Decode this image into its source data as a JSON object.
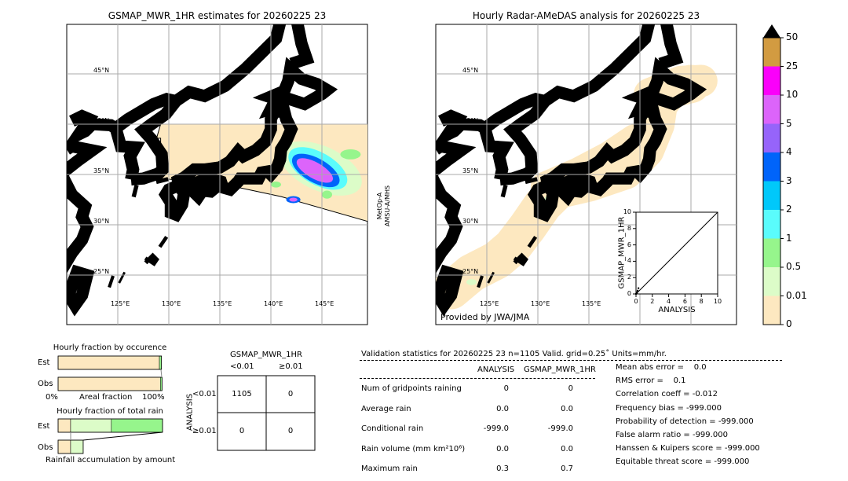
{
  "map_left": {
    "title": "GSMAP_MWR_1HR estimates for 20260225 23",
    "side_label_1": "MetOp-A",
    "side_label_2": "AMSU-A/MHS"
  },
  "map_right": {
    "title": "Hourly Radar-AMeDAS analysis for 20260225 23",
    "credit": "Provided by JWA/JMA"
  },
  "lat_labels": [
    "45°N",
    "40°N",
    "35°N",
    "30°N",
    "25°N"
  ],
  "lon_labels": [
    "125°E",
    "130°E",
    "135°E",
    "140°E",
    "145°E"
  ],
  "colorbar": {
    "ticks": [
      "0",
      "0.01",
      "0.5",
      "1",
      "2",
      "3",
      "4",
      "5",
      "10",
      "25",
      "50"
    ],
    "colors": [
      "#fde8c0",
      "#dcfcc8",
      "#96f58c",
      "#5afcfc",
      "#00c8fa",
      "#0064fa",
      "#9664fa",
      "#dc64fa",
      "#fa00fa",
      "#d29b41"
    ],
    "extend_color": "#000000"
  },
  "chart_data": [
    {
      "type": "scatter",
      "xlabel": "ANALYSIS",
      "ylabel": "GSMAP_MWR_1HR",
      "xlim": [
        0,
        10
      ],
      "ylim": [
        0,
        10
      ],
      "ticks": [
        "0",
        "2",
        "4",
        "6",
        "8",
        "10"
      ],
      "points": [
        [
          0,
          0
        ],
        [
          0.1,
          0.2
        ],
        [
          0.2,
          0.4
        ],
        [
          0.3,
          0.7
        ],
        [
          0.1,
          0.1
        ]
      ]
    },
    {
      "type": "bar",
      "title": "Hourly fraction by occurence",
      "categories": [
        "Est",
        "Obs"
      ],
      "xlabel": "Areal fraction",
      "xtick_left": "0%",
      "xtick_right": "100%",
      "series": [
        {
          "values": [
            0.97,
            0.98
          ],
          "color": "#fde8c0"
        },
        {
          "values": [
            0.02,
            0.015
          ],
          "color": "#96f58c"
        }
      ]
    },
    {
      "type": "bar",
      "title": "Hourly fraction of total rain",
      "categories": [
        "Est",
        "Obs"
      ],
      "xlabel": "Rainfall accumulation by amount",
      "series": [
        {
          "values": [
            0.12,
            0.12
          ],
          "color": "#fde8c0"
        },
        {
          "values": [
            0.39,
            0.12
          ],
          "color": "#dcfcc8"
        },
        {
          "values": [
            0.49,
            0.0
          ],
          "color": "#96f58c"
        }
      ]
    }
  ],
  "contingency": {
    "title": "GSMAP_MWR_1HR",
    "col_labels": [
      "<0.01",
      "≥0.01"
    ],
    "row_axis": "ANALYSIS",
    "row_labels": [
      "<0.01",
      "≥0.01"
    ],
    "cells": [
      [
        "1105",
        "0"
      ],
      [
        "0",
        "0"
      ]
    ]
  },
  "stats": {
    "header": "Validation statistics for 20260225 23  n=1105 Valid. grid=0.25˚ Units=mm/hr.",
    "col_analysis": "ANALYSIS",
    "col_gsmap": "GSMAP_MWR_1HR",
    "rows": [
      {
        "label": "Num of gridpoints raining",
        "analysis": "0",
        "gsmap": "0"
      },
      {
        "label": "Average rain",
        "analysis": "0.0",
        "gsmap": "0.0"
      },
      {
        "label": "Conditional rain",
        "analysis": "-999.0",
        "gsmap": "-999.0"
      },
      {
        "label": "Rain volume (mm km²10⁶)",
        "analysis": "0.0",
        "gsmap": "0.0"
      },
      {
        "label": "Maximum rain",
        "analysis": "0.3",
        "gsmap": "0.7"
      }
    ],
    "scores": [
      "Mean abs error =    0.0",
      "RMS error =    0.1",
      "Correlation coeff = -0.012",
      "Frequency bias = -999.000",
      "Probability of detection = -999.000",
      "False alarm ratio = -999.000",
      "Hanssen & Kuipers score = -999.000",
      "Equitable threat score = -999.000"
    ]
  }
}
